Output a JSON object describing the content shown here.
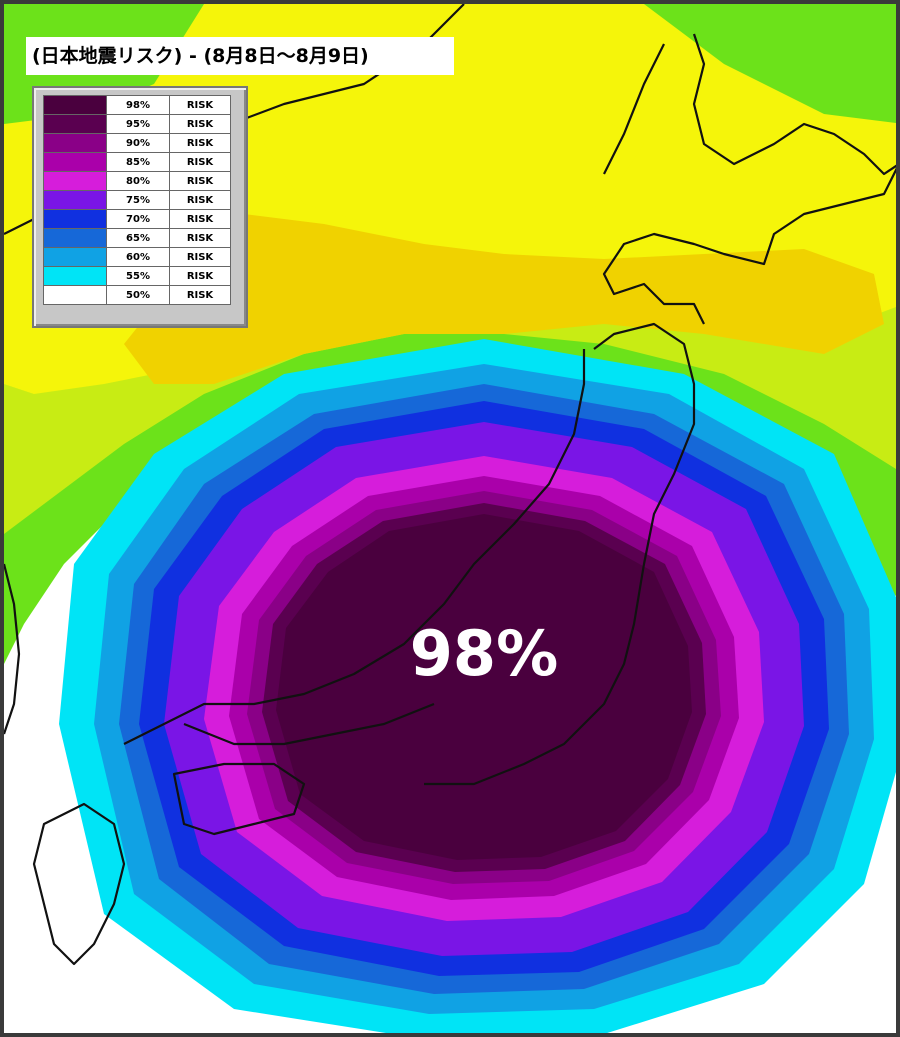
{
  "map": {
    "title": "(日本地震リスク) - (8月8日～8月9日)",
    "center_label": "98%",
    "legend": {
      "items": [
        {
          "percent": "98%",
          "label": "RISK",
          "color": "#4a003e"
        },
        {
          "percent": "95%",
          "label": "RISK",
          "color": "#5a0050"
        },
        {
          "percent": "90%",
          "label": "RISK",
          "color": "#8a0087"
        },
        {
          "percent": "85%",
          "label": "RISK",
          "color": "#aa00aa"
        },
        {
          "percent": "80%",
          "label": "RISK",
          "color": "#d61ddb"
        },
        {
          "percent": "75%",
          "label": "RISK",
          "color": "#7a15e6"
        },
        {
          "percent": "70%",
          "label": "RISK",
          "color": "#1030e0"
        },
        {
          "percent": "65%",
          "label": "RISK",
          "color": "#1668d8"
        },
        {
          "percent": "60%",
          "label": "RISK",
          "color": "#10a2e4"
        },
        {
          "percent": "55%",
          "label": "RISK",
          "color": "#00e4f6"
        },
        {
          "percent": "50%",
          "label": "RISK",
          "color": "#ffffff"
        }
      ]
    },
    "background_colors": {
      "yellow": "#f5f50a",
      "yellow_orange": "#f0d200",
      "yellow_green": "#c8ec14",
      "green": "#6ce21a"
    }
  }
}
